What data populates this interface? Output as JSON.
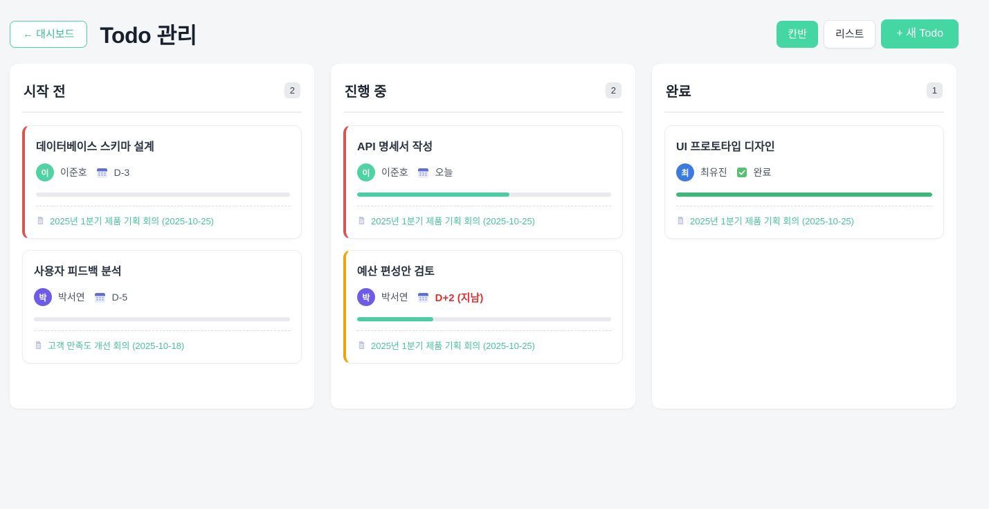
{
  "header": {
    "back_label": "← 대시보드",
    "title": "Todo 관리",
    "kanban_label": "칸반",
    "list_label": "리스트",
    "new_todo_label": "+ 새 Todo"
  },
  "colors": {
    "accent_green": "#45d7a3",
    "link_teal": "#48c2a1",
    "overdue_red": "#e0312f",
    "card_accent_red": "#d9534f",
    "card_accent_orange": "#efa407",
    "progress_active": "#4ace9f",
    "progress_done": "#3cb878"
  },
  "columns": [
    {
      "title": "시작 전",
      "count": "2",
      "cards": [
        {
          "title": "데이터베이스 스키마 설계",
          "avatar_initial": "이",
          "avatar_color": "#4fd3a2",
          "assignee": "이준호",
          "due": "D-3",
          "progress": 0,
          "progress_color": "#4ace9f",
          "meeting": "2025년 1분기 제품 기획 회의 (2025-10-25)"
        },
        {
          "title": "사용자 피드백 분석",
          "avatar_initial": "박",
          "avatar_color": "#6c5ce7",
          "assignee": "박서연",
          "due": "D-5",
          "progress": 0,
          "progress_color": "#4ace9f",
          "meeting": "고객 만족도 개선 회의 (2025-10-18)"
        }
      ]
    },
    {
      "title": "진행 중",
      "count": "2",
      "cards": [
        {
          "title": "API 명세서 작성",
          "avatar_initial": "이",
          "avatar_color": "#4fd3a2",
          "assignee": "이준호",
          "due": "오늘",
          "progress": 60,
          "progress_color": "#4ace9f",
          "meeting": "2025년 1분기 제품 기획 회의 (2025-10-25)"
        },
        {
          "title": "예산 편성안 검토",
          "avatar_initial": "박",
          "avatar_color": "#6c5ce7",
          "assignee": "박서연",
          "due": "D+2 (지남)",
          "progress": 30,
          "progress_color": "#4ace9f",
          "meeting": "2025년 1분기 제품 기획 회의 (2025-10-25)"
        }
      ]
    },
    {
      "title": "완료",
      "count": "1",
      "cards": [
        {
          "title": "UI 프로토타입 디자인",
          "avatar_initial": "최",
          "avatar_color": "#3b7be0",
          "assignee": "최유진",
          "status": "완료",
          "progress": 100,
          "progress_color": "#3cb878",
          "meeting": "2025년 1분기 제품 기획 회의 (2025-10-25)"
        }
      ]
    }
  ]
}
